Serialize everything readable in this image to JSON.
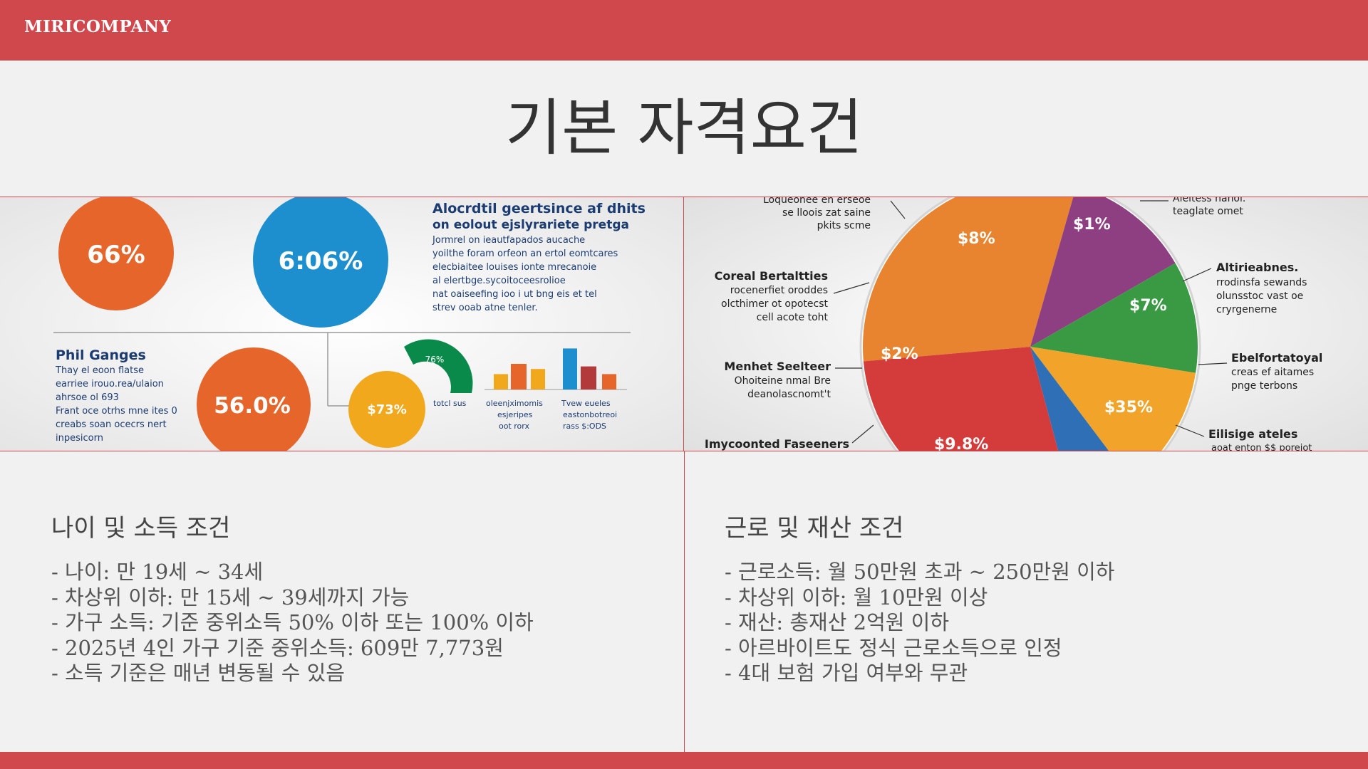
{
  "header": {
    "brand": "MIRICOMPANY"
  },
  "page_title": "기본 자격요건",
  "left_image": {
    "circles": [
      {
        "label": "66%",
        "color": "#e5652b"
      },
      {
        "label": "6:06%",
        "color": "#1d8fcf"
      },
      {
        "label": "56.0%",
        "color": "#e5652b"
      },
      {
        "label": "$73%",
        "color": "#f2a81d"
      }
    ],
    "gauge_label": "76%",
    "heading": "Alocrdtil geertsince af dhits",
    "subheading": "on eolout ejslyrariete pretga",
    "paragraph": [
      "Jormrel on ieautfapados aucache",
      "yoilthe foram orfeon an ertol eomtcares",
      "elecbiaitee louises ionte mrecanoie",
      "al elertbge.sycoitoceesrolioe",
      "nat oaiseefing ioo i ut bng eis et tel",
      "strev ooab atne tenler."
    ],
    "side_heading": "Phil Ganges",
    "side_paragraph": [
      "Thay el eoon flatse",
      "earriee irouo.rea/ulaion",
      "ahrsoe ol 693",
      "Frant oce otrhs mne ites 0",
      "creabs soan ocecrs nert",
      "inpesicorn"
    ],
    "captions": [
      "totcl sus",
      "oleenjximomis",
      "esjeripes",
      "oot rorx",
      "Tvew eueles",
      "eastonbotreoi",
      "rass $:ODS"
    ],
    "bars": [
      {
        "value": 3,
        "color": "#f2a81d"
      },
      {
        "value": 5,
        "color": "#e5652b"
      },
      {
        "value": 4,
        "color": "#f2a81d"
      },
      {
        "value": 8,
        "color": "#1d8fcf"
      },
      {
        "value": 4.5,
        "color": "#b33a3a"
      },
      {
        "value": 3,
        "color": "#e5652b"
      }
    ]
  },
  "right_image": {
    "slices": [
      {
        "label": "$8%",
        "color": "#e8842f"
      },
      {
        "label": "$1%",
        "color": "#8e3f82"
      },
      {
        "label": "$7%",
        "color": "#3a9a43"
      },
      {
        "label": "$35%",
        "color": "#f2a42a"
      },
      {
        "label": "$9.8%",
        "color": "#2e6fb5"
      },
      {
        "label": "$2%",
        "color": "#d43b3b"
      }
    ],
    "callouts": [
      {
        "title": "",
        "lines": [
          "Loqueonee en erseoe",
          "se lloois zat saine",
          "pkits scme"
        ]
      },
      {
        "title": "Coreal Bertaltties",
        "lines": [
          "rocenerfiet oroddes",
          "olcthimer ot opotecst",
          "cell acote toht"
        ]
      },
      {
        "title": "Menhet Seelteer",
        "lines": [
          "Ohoiteine nmal Bre",
          "deanolascnomt't"
        ]
      },
      {
        "title": "Imycoonted Faseeners",
        "lines": []
      },
      {
        "title": "",
        "lines": [
          "Aleitess nanoi.",
          "teaglate omet"
        ]
      },
      {
        "title": "Altirieabnes.",
        "lines": [
          "rrodinsfa sewands",
          "olunsstoc vast oe",
          "cryrgenerne"
        ]
      },
      {
        "title": "Ebelfortatoyal",
        "lines": [
          "creas ef aitames",
          "pnge terbons"
        ]
      },
      {
        "title": "Eilisige ateles",
        "lines": [
          "aoat enton $$ poreiot"
        ]
      }
    ]
  },
  "left_section": {
    "title": "나이 및 소득 조건",
    "items": [
      "- 나이: 만 19세 ~ 34세",
      "- 차상위 이하: 만 15세 ~ 39세까지 가능",
      "- 가구 소득: 기준 중위소득 50% 이하 또는 100% 이하",
      "- 2025년 4인 가구 기준 중위소득: 609만 7,773원",
      "- 소득 기준은 매년 변동될 수 있음"
    ]
  },
  "right_section": {
    "title": "근로 및 재산 조건",
    "items": [
      "- 근로소득: 월 50만원 초과 ~ 250만원 이하",
      "- 차상위 이하: 월 10만원 이상",
      "- 재산: 총재산 2억원 이하",
      "- 아르바이트도 정식 근로소득으로 인정",
      "- 4대 보험 가입 여부와 무관"
    ]
  }
}
